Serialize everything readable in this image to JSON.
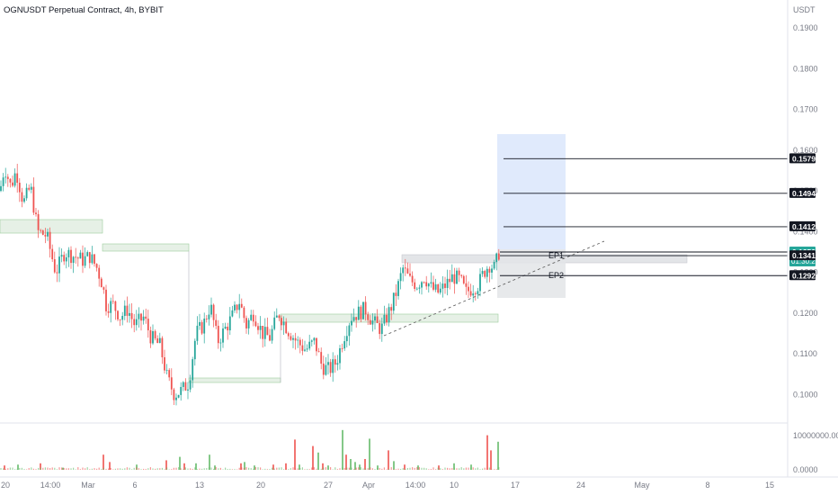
{
  "header": {
    "title": "OGNUSDT Perpetual Contract, 4h, BYBIT",
    "currency": "USDT"
  },
  "colors": {
    "up": "#26a69a",
    "down": "#ef5350",
    "vol_up": "#66bb6a",
    "vol_down": "#ef5350",
    "zone_fill": "#e6f0e6",
    "zone_stroke": "#9ccc9c",
    "target_fill": "#dbe6fb",
    "stop_fill": "#e3e5e8",
    "tag_dark": "#131722",
    "tag_green": "#26a69a"
  },
  "chart_data": {
    "type": "candlestick",
    "price_axis": {
      "min": 0.097,
      "max": 0.192,
      "ticks": [
        "0.1000",
        "0.1100",
        "0.1200",
        "0.1300",
        "0.1400",
        "0.1500",
        "0.1600",
        "0.1700",
        "0.1800",
        "0.1900"
      ]
    },
    "x_axis": {
      "labels": [
        "20",
        "14:00",
        "Mar",
        "6",
        "13",
        "20",
        "27",
        "Apr",
        "14:00",
        "10",
        "17",
        "24",
        "May",
        "8",
        "15"
      ]
    },
    "volume_axis": {
      "ticks": [
        "10000000.0000",
        "0.0000"
      ]
    },
    "price_path": [
      [
        0,
        0.15
      ],
      [
        5,
        0.156
      ],
      [
        12,
        0.151
      ],
      [
        18,
        0.155
      ],
      [
        26,
        0.147
      ],
      [
        34,
        0.151
      ],
      [
        42,
        0.14
      ],
      [
        52,
        0.139
      ],
      [
        62,
        0.13
      ],
      [
        72,
        0.135
      ],
      [
        82,
        0.134
      ],
      [
        92,
        0.133
      ],
      [
        100,
        0.134
      ],
      [
        108,
        0.131
      ],
      [
        114,
        0.127
      ],
      [
        118,
        0.122
      ],
      [
        126,
        0.122
      ],
      [
        134,
        0.119
      ],
      [
        142,
        0.121
      ],
      [
        150,
        0.117
      ],
      [
        160,
        0.119
      ],
      [
        168,
        0.114
      ],
      [
        178,
        0.112
      ],
      [
        186,
        0.104
      ],
      [
        194,
        0.1
      ],
      [
        202,
        0.101
      ],
      [
        210,
        0.103
      ],
      [
        218,
        0.115
      ],
      [
        226,
        0.117
      ],
      [
        234,
        0.122
      ],
      [
        242,
        0.113
      ],
      [
        250,
        0.116
      ],
      [
        258,
        0.119
      ],
      [
        266,
        0.123
      ],
      [
        274,
        0.117
      ],
      [
        282,
        0.12
      ],
      [
        292,
        0.115
      ],
      [
        300,
        0.114
      ],
      [
        310,
        0.12
      ],
      [
        320,
        0.116
      ],
      [
        330,
        0.113
      ],
      [
        340,
        0.111
      ],
      [
        350,
        0.113
      ],
      [
        358,
        0.107
      ],
      [
        366,
        0.106
      ],
      [
        374,
        0.108
      ],
      [
        382,
        0.114
      ],
      [
        390,
        0.119
      ],
      [
        398,
        0.12
      ],
      [
        406,
        0.121
      ],
      [
        414,
        0.118
      ],
      [
        424,
        0.116
      ],
      [
        430,
        0.119
      ],
      [
        436,
        0.122
      ],
      [
        442,
        0.126
      ],
      [
        448,
        0.131
      ],
      [
        456,
        0.128
      ],
      [
        464,
        0.127
      ],
      [
        472,
        0.129
      ],
      [
        480,
        0.126
      ],
      [
        488,
        0.125
      ],
      [
        496,
        0.127
      ],
      [
        504,
        0.129
      ],
      [
        512,
        0.128
      ],
      [
        518,
        0.125
      ],
      [
        524,
        0.126
      ],
      [
        532,
        0.127
      ],
      [
        538,
        0.13
      ],
      [
        544,
        0.132
      ],
      [
        550,
        0.131
      ],
      [
        555,
        0.135
      ]
    ],
    "volume_bars": [
      [
        5,
        0.1,
        "down"
      ],
      [
        20,
        0.12,
        "up"
      ],
      [
        45,
        0.15,
        "down"
      ],
      [
        70,
        0.05,
        "up"
      ],
      [
        115,
        0.35,
        "down"
      ],
      [
        122,
        0.18,
        "down"
      ],
      [
        152,
        0.12,
        "up"
      ],
      [
        185,
        0.22,
        "down"
      ],
      [
        200,
        0.3,
        "up"
      ],
      [
        205,
        0.15,
        "down"
      ],
      [
        218,
        0.15,
        "up"
      ],
      [
        233,
        0.35,
        "up"
      ],
      [
        239,
        0.1,
        "up"
      ],
      [
        268,
        0.15,
        "down"
      ],
      [
        272,
        0.18,
        "up"
      ],
      [
        283,
        0.1,
        "up"
      ],
      [
        304,
        0.12,
        "down"
      ],
      [
        318,
        0.15,
        "down"
      ],
      [
        328,
        0.7,
        "down"
      ],
      [
        333,
        0.12,
        "up"
      ],
      [
        348,
        0.55,
        "down"
      ],
      [
        354,
        0.4,
        "up"
      ],
      [
        359,
        0.15,
        "down"
      ],
      [
        365,
        0.1,
        "up"
      ],
      [
        381,
        0.92,
        "up"
      ],
      [
        385,
        0.35,
        "down"
      ],
      [
        390,
        0.25,
        "up"
      ],
      [
        395,
        0.18,
        "up"
      ],
      [
        400,
        0.12,
        "up"
      ],
      [
        406,
        0.25,
        "down"
      ],
      [
        411,
        0.72,
        "up"
      ],
      [
        420,
        0.1,
        "up"
      ],
      [
        432,
        0.45,
        "down"
      ],
      [
        438,
        0.2,
        "up"
      ],
      [
        450,
        0.12,
        "down"
      ],
      [
        465,
        0.1,
        "up"
      ],
      [
        488,
        0.1,
        "down"
      ],
      [
        505,
        0.15,
        "up"
      ],
      [
        524,
        0.12,
        "up"
      ],
      [
        542,
        0.8,
        "down"
      ],
      [
        546,
        0.45,
        "down"
      ],
      [
        554,
        0.65,
        "up"
      ]
    ],
    "horizontal_levels": [
      {
        "price": 0.1579,
        "label": "0.1579",
        "style": "dark"
      },
      {
        "price": 0.1494,
        "label": "0.1494",
        "style": "dark"
      },
      {
        "price": 0.1412,
        "label": "0.1412",
        "style": "dark"
      },
      {
        "price": 0.135,
        "label": "0.1350",
        "style": "green",
        "countdown": "01:30:23"
      },
      {
        "price": 0.1341,
        "label": "0.1341",
        "style": "dark"
      },
      {
        "price": 0.1292,
        "label": "0.1292",
        "style": "dark"
      }
    ],
    "entry_labels": [
      {
        "label": "EP1",
        "price": 0.1341
      },
      {
        "label": "EP2",
        "price": 0.1292
      }
    ]
  }
}
